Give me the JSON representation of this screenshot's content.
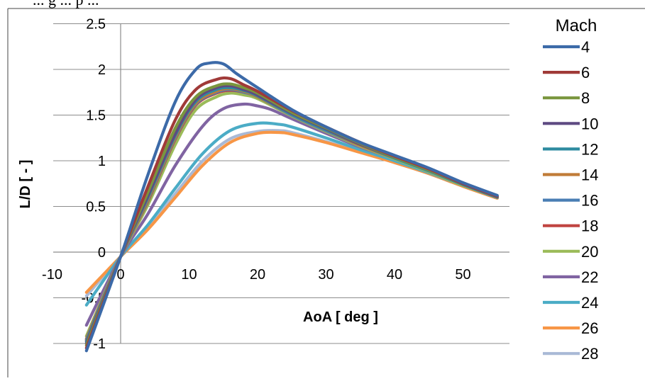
{
  "page": {
    "cut_text": "... g ... p ..."
  },
  "chart_data": {
    "type": "line",
    "title": "",
    "xlabel": "AoA [ deg ]",
    "ylabel": "L/D [ - ]",
    "xlim": [
      -10,
      60
    ],
    "ylim": [
      -1,
      2.5
    ],
    "x_ticks": [
      -10,
      0,
      10,
      20,
      30,
      40,
      50
    ],
    "y_ticks": [
      -1,
      -0.5,
      0,
      0.5,
      1,
      1.5,
      2,
      2.5
    ],
    "grid": "horizontal",
    "legend": {
      "title": "Mach",
      "placement": "right"
    },
    "series": [
      {
        "name": "4",
        "color": "#3C6AA8",
        "points": [
          [
            -5,
            -1.08
          ],
          [
            0,
            -0.05
          ],
          [
            4,
            0.85
          ],
          [
            8,
            1.65
          ],
          [
            11,
            2.0
          ],
          [
            13,
            2.07
          ],
          [
            15,
            2.06
          ],
          [
            17,
            1.95
          ],
          [
            20,
            1.8
          ],
          [
            25,
            1.56
          ],
          [
            30,
            1.37
          ],
          [
            35,
            1.2
          ],
          [
            40,
            1.06
          ],
          [
            45,
            0.92
          ],
          [
            50,
            0.76
          ],
          [
            55,
            0.62
          ]
        ]
      },
      {
        "name": "6",
        "color": "#A03A38",
        "points": [
          [
            -5,
            -1.05
          ],
          [
            0,
            -0.05
          ],
          [
            4,
            0.72
          ],
          [
            8,
            1.45
          ],
          [
            11,
            1.78
          ],
          [
            14,
            1.89
          ],
          [
            16,
            1.9
          ],
          [
            18,
            1.83
          ],
          [
            20,
            1.76
          ],
          [
            25,
            1.55
          ],
          [
            30,
            1.37
          ],
          [
            35,
            1.2
          ],
          [
            40,
            1.05
          ],
          [
            45,
            0.91
          ],
          [
            50,
            0.75
          ],
          [
            55,
            0.61
          ]
        ]
      },
      {
        "name": "8",
        "color": "#7A963E",
        "points": [
          [
            -5,
            -1.02
          ],
          [
            0,
            -0.05
          ],
          [
            4,
            0.66
          ],
          [
            8,
            1.36
          ],
          [
            11,
            1.7
          ],
          [
            14,
            1.82
          ],
          [
            16,
            1.84
          ],
          [
            18,
            1.8
          ],
          [
            20,
            1.74
          ],
          [
            25,
            1.53
          ],
          [
            30,
            1.36
          ],
          [
            35,
            1.19
          ],
          [
            40,
            1.04
          ],
          [
            45,
            0.9
          ],
          [
            50,
            0.75
          ],
          [
            55,
            0.61
          ]
        ]
      },
      {
        "name": "10",
        "color": "#5E4A82",
        "points": [
          [
            -5,
            -1.0
          ],
          [
            0,
            -0.05
          ],
          [
            4,
            0.62
          ],
          [
            8,
            1.3
          ],
          [
            11,
            1.67
          ],
          [
            14,
            1.8
          ],
          [
            16,
            1.82
          ],
          [
            18,
            1.78
          ],
          [
            20,
            1.72
          ],
          [
            25,
            1.52
          ],
          [
            30,
            1.35
          ],
          [
            35,
            1.18
          ],
          [
            40,
            1.04
          ],
          [
            45,
            0.9
          ],
          [
            50,
            0.75
          ],
          [
            55,
            0.61
          ]
        ]
      },
      {
        "name": "12",
        "color": "#2E8BA0",
        "points": [
          [
            -5,
            -0.98
          ],
          [
            0,
            -0.05
          ],
          [
            4,
            0.6
          ],
          [
            8,
            1.28
          ],
          [
            11,
            1.65
          ],
          [
            14,
            1.78
          ],
          [
            16,
            1.8
          ],
          [
            18,
            1.77
          ],
          [
            20,
            1.71
          ],
          [
            25,
            1.51
          ],
          [
            30,
            1.34
          ],
          [
            35,
            1.18
          ],
          [
            40,
            1.03
          ],
          [
            45,
            0.89
          ],
          [
            50,
            0.74
          ],
          [
            55,
            0.6
          ]
        ]
      },
      {
        "name": "14",
        "color": "#C07C38",
        "points": [
          [
            -5,
            -0.97
          ],
          [
            0,
            -0.05
          ],
          [
            4,
            0.58
          ],
          [
            8,
            1.26
          ],
          [
            11,
            1.63
          ],
          [
            14,
            1.76
          ],
          [
            16,
            1.79
          ],
          [
            18,
            1.76
          ],
          [
            20,
            1.7
          ],
          [
            25,
            1.51
          ],
          [
            30,
            1.34
          ],
          [
            35,
            1.17
          ],
          [
            40,
            1.03
          ],
          [
            45,
            0.89
          ],
          [
            50,
            0.74
          ],
          [
            55,
            0.6
          ]
        ]
      },
      {
        "name": "16",
        "color": "#4A7EB4",
        "points": [
          [
            -5,
            -0.96
          ],
          [
            0,
            -0.05
          ],
          [
            4,
            0.57
          ],
          [
            8,
            1.25
          ],
          [
            11,
            1.62
          ],
          [
            14,
            1.75
          ],
          [
            16,
            1.78
          ],
          [
            18,
            1.75
          ],
          [
            20,
            1.7
          ],
          [
            25,
            1.5
          ],
          [
            30,
            1.33
          ],
          [
            35,
            1.17
          ],
          [
            40,
            1.03
          ],
          [
            45,
            0.89
          ],
          [
            50,
            0.74
          ],
          [
            55,
            0.6
          ]
        ]
      },
      {
        "name": "18",
        "color": "#C04440",
        "points": [
          [
            -5,
            -0.95
          ],
          [
            0,
            -0.05
          ],
          [
            4,
            0.56
          ],
          [
            8,
            1.24
          ],
          [
            11,
            1.61
          ],
          [
            14,
            1.74
          ],
          [
            16,
            1.77
          ],
          [
            18,
            1.75
          ],
          [
            20,
            1.7
          ],
          [
            25,
            1.5
          ],
          [
            30,
            1.33
          ],
          [
            35,
            1.17
          ],
          [
            40,
            1.03
          ],
          [
            45,
            0.89
          ],
          [
            50,
            0.74
          ],
          [
            55,
            0.6
          ]
        ]
      },
      {
        "name": "20",
        "color": "#9BBB59",
        "points": [
          [
            -5,
            -0.92
          ],
          [
            0,
            -0.05
          ],
          [
            4,
            0.52
          ],
          [
            8,
            1.18
          ],
          [
            11,
            1.56
          ],
          [
            14,
            1.7
          ],
          [
            16,
            1.74
          ],
          [
            18,
            1.72
          ],
          [
            20,
            1.68
          ],
          [
            25,
            1.49
          ],
          [
            30,
            1.32
          ],
          [
            35,
            1.16
          ],
          [
            40,
            1.02
          ],
          [
            45,
            0.88
          ],
          [
            50,
            0.73
          ],
          [
            55,
            0.6
          ]
        ]
      },
      {
        "name": "22",
        "color": "#8064A2",
        "points": [
          [
            -5,
            -0.8
          ],
          [
            0,
            -0.05
          ],
          [
            4,
            0.42
          ],
          [
            8,
            0.95
          ],
          [
            12,
            1.38
          ],
          [
            15,
            1.57
          ],
          [
            18,
            1.62
          ],
          [
            20,
            1.6
          ],
          [
            22,
            1.56
          ],
          [
            25,
            1.46
          ],
          [
            30,
            1.3
          ],
          [
            35,
            1.15
          ],
          [
            40,
            1.02
          ],
          [
            45,
            0.88
          ],
          [
            50,
            0.73
          ],
          [
            55,
            0.6
          ]
        ]
      },
      {
        "name": "24",
        "color": "#4BACC6",
        "points": [
          [
            -5,
            -0.58
          ],
          [
            0,
            -0.05
          ],
          [
            4,
            0.3
          ],
          [
            8,
            0.7
          ],
          [
            12,
            1.08
          ],
          [
            16,
            1.33
          ],
          [
            20,
            1.41
          ],
          [
            23,
            1.4
          ],
          [
            25,
            1.37
          ],
          [
            30,
            1.25
          ],
          [
            35,
            1.12
          ],
          [
            40,
            1.0
          ],
          [
            45,
            0.87
          ],
          [
            50,
            0.73
          ],
          [
            55,
            0.6
          ]
        ]
      },
      {
        "name": "26",
        "color": "#F79646",
        "points": [
          [
            -5,
            -0.44
          ],
          [
            0,
            -0.05
          ],
          [
            4,
            0.25
          ],
          [
            8,
            0.6
          ],
          [
            12,
            0.95
          ],
          [
            16,
            1.2
          ],
          [
            20,
            1.3
          ],
          [
            23,
            1.31
          ],
          [
            25,
            1.29
          ],
          [
            30,
            1.2
          ],
          [
            35,
            1.09
          ],
          [
            40,
            0.98
          ],
          [
            45,
            0.86
          ],
          [
            50,
            0.72
          ],
          [
            55,
            0.59
          ]
        ]
      },
      {
        "name": "28",
        "color": "#A9B9D6",
        "points": [
          [
            -5,
            -0.48
          ],
          [
            0,
            -0.05
          ],
          [
            4,
            0.27
          ],
          [
            8,
            0.64
          ],
          [
            12,
            1.0
          ],
          [
            16,
            1.24
          ],
          [
            20,
            1.32
          ],
          [
            23,
            1.33
          ],
          [
            25,
            1.31
          ],
          [
            30,
            1.21
          ],
          [
            35,
            1.1
          ],
          [
            40,
            0.98
          ],
          [
            45,
            0.86
          ],
          [
            50,
            0.72
          ],
          [
            55,
            0.59
          ]
        ]
      }
    ]
  }
}
